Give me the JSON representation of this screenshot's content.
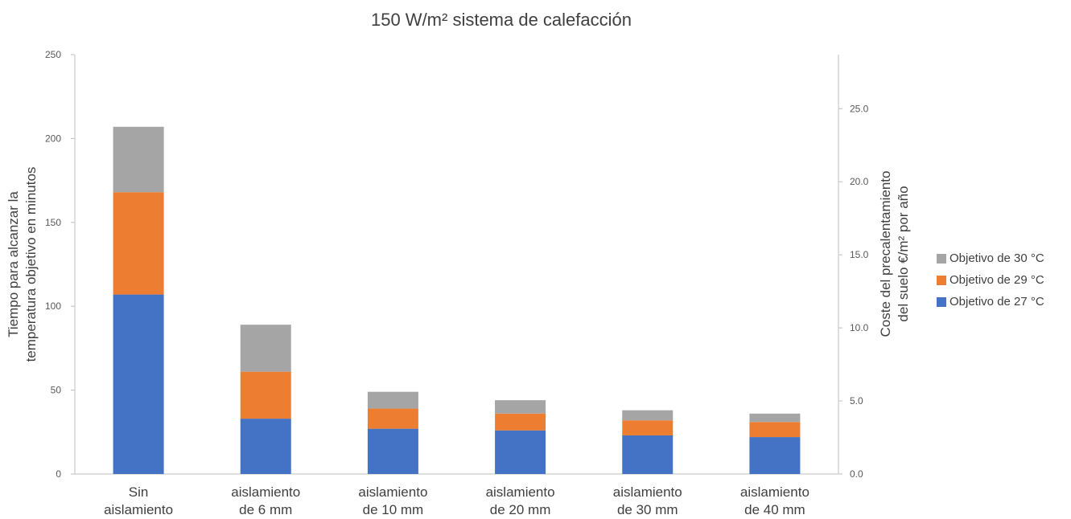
{
  "chart_data": {
    "type": "bar",
    "stacked": true,
    "title": "150 W/m² sistema de calefacción",
    "categories": [
      [
        "Sin",
        "aislamiento"
      ],
      [
        "aislamiento",
        "de 6 mm"
      ],
      [
        "aislamiento",
        "de 10 mm"
      ],
      [
        "aislamiento",
        "de 20 mm"
      ],
      [
        "aislamiento",
        "de 30 mm"
      ],
      [
        "aislamiento",
        "de 40 mm"
      ]
    ],
    "series": [
      {
        "name": "Objetivo de 27 °C",
        "color": "#4472c4",
        "values": [
          107,
          33,
          27,
          26,
          23,
          22
        ]
      },
      {
        "name": "Objetivo de 29 °C",
        "color": "#ed7d31",
        "values": [
          61,
          28,
          12,
          10,
          9,
          9
        ]
      },
      {
        "name": "Objetivo de 30 °C",
        "color": "#a5a5a5",
        "values": [
          39,
          28,
          10,
          8,
          6,
          5
        ]
      }
    ],
    "ylabel": [
      "Tiempo para alcanzar la",
      "temperatura objetivo en minutos"
    ],
    "ylim": [
      0,
      250
    ],
    "yticks": [
      0,
      50,
      100,
      150,
      200,
      250
    ],
    "y2label": [
      "Coste del precalentamiento",
      "del suelo €/m² por año"
    ],
    "y2lim": [
      0,
      28.7
    ],
    "y2ticks": [
      "0.0",
      "5.0",
      "10.0",
      "15.0",
      "20.0",
      "25.0"
    ],
    "grid": false,
    "legend_position": "right"
  }
}
